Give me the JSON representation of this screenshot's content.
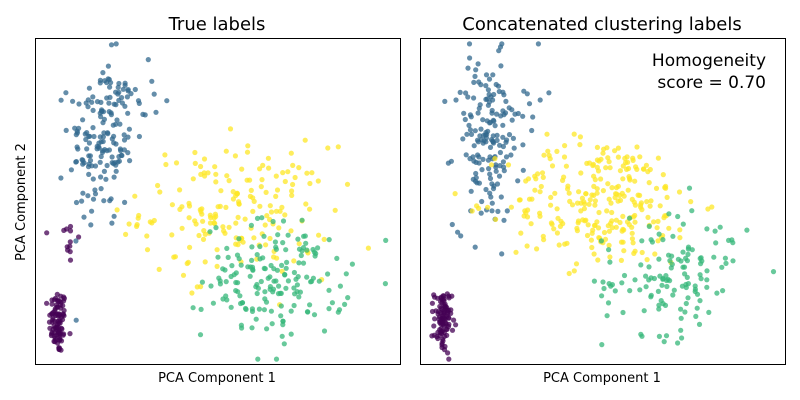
{
  "chart_data": [
    {
      "type": "scatter",
      "title": "True labels",
      "xlabel": "PCA Component 1",
      "ylabel": "PCA Component 2",
      "xticks": "none",
      "yticks": "none",
      "xlim": [
        0,
        100
      ],
      "ylim": [
        0,
        100
      ],
      "grid": false,
      "legend": "none",
      "marker_alpha": 0.75,
      "series": [
        {
          "color": "#440154",
          "clusters": [
            {
              "cx": 6,
              "cy": 13,
              "sx": 1.2,
              "sy": 5,
              "n": 90
            },
            {
              "cx": 9,
              "cy": 38,
              "sx": 1.5,
              "sy": 5,
              "n": 12
            }
          ]
        },
        {
          "color": "#31688e",
          "clusters": [
            {
              "cx": 18,
              "cy": 68,
              "sx": 4.5,
              "sy": 13,
              "n": 150
            },
            {
              "cx": 24,
              "cy": 82,
              "sx": 5,
              "sy": 5,
              "n": 25
            }
          ]
        },
        {
          "color": "#fde725",
          "clusters": [
            {
              "cx": 55,
              "cy": 47,
              "sx": 13,
              "sy": 10,
              "n": 180
            }
          ]
        },
        {
          "color": "#35b779",
          "clusters": [
            {
              "cx": 66,
              "cy": 26,
              "sx": 10,
              "sy": 9,
              "n": 170
            }
          ]
        }
      ]
    },
    {
      "type": "scatter",
      "title": "Concatenated clustering labels",
      "xlabel": "PCA Component 1",
      "xticks": "none",
      "yticks": "none",
      "xlim": [
        0,
        100
      ],
      "ylim": [
        0,
        100
      ],
      "grid": false,
      "legend": "none",
      "marker_alpha": 0.75,
      "annotation": [
        "Homogeneity",
        "score = 0.70"
      ],
      "annotation_position": "top-right",
      "series": [
        {
          "color": "#440154",
          "clusters": [
            {
              "cx": 6,
              "cy": 13,
              "sx": 1.2,
              "sy": 5,
              "n": 95
            }
          ]
        },
        {
          "color": "#31688e",
          "clusters": [
            {
              "cx": 18,
              "cy": 68,
              "sx": 4.5,
              "sy": 13,
              "n": 150
            },
            {
              "cx": 24,
              "cy": 82,
              "sx": 5,
              "sy": 5,
              "n": 25
            }
          ]
        },
        {
          "color": "#fde725",
          "clusters": [
            {
              "cx": 50,
              "cy": 50,
              "sx": 13,
              "sy": 10,
              "n": 260
            }
          ]
        },
        {
          "color": "#35b779",
          "clusters": [
            {
              "cx": 68,
              "cy": 25,
              "sx": 9,
              "sy": 8,
              "n": 100
            },
            {
              "cx": 76,
              "cy": 38,
              "sx": 8,
              "sy": 7,
              "n": 30
            }
          ]
        }
      ]
    }
  ]
}
